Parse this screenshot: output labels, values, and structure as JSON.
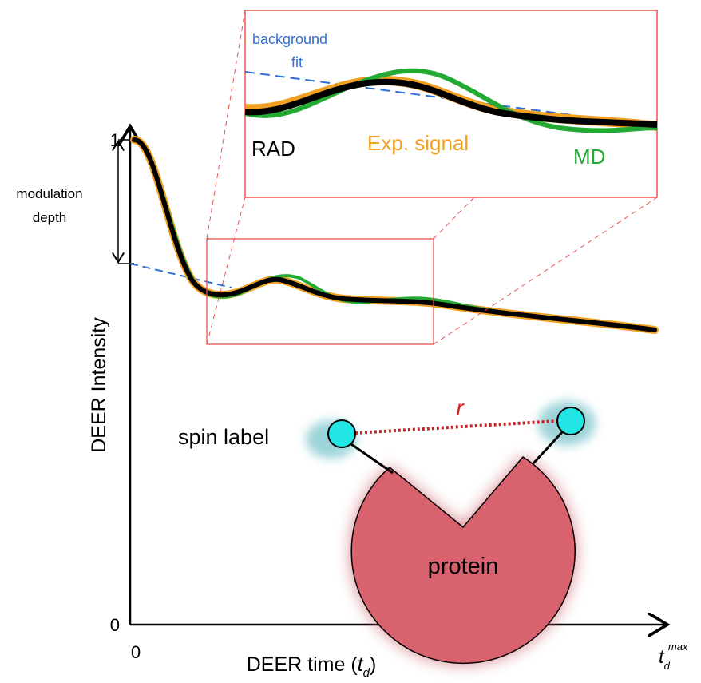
{
  "axis": {
    "y_label": "DEER Intensity",
    "x_label": {
      "prefix": "DEER time (",
      "var": "t",
      "sub": "d",
      "suffix": ")"
    },
    "y_ticks": [
      "1",
      "0"
    ],
    "x_ticks": [
      "0"
    ],
    "x_end": {
      "var": "t",
      "sub": "d",
      "sup": "max"
    }
  },
  "annotations": {
    "modulation_depth": [
      "modulation",
      "depth"
    ],
    "background_fit": [
      "background",
      "fit"
    ]
  },
  "legend": {
    "rad": "RAD",
    "exp": "Exp. signal",
    "md": "MD"
  },
  "schematic": {
    "spin_label": "spin label",
    "distance": "r",
    "protein": "protein"
  }
}
